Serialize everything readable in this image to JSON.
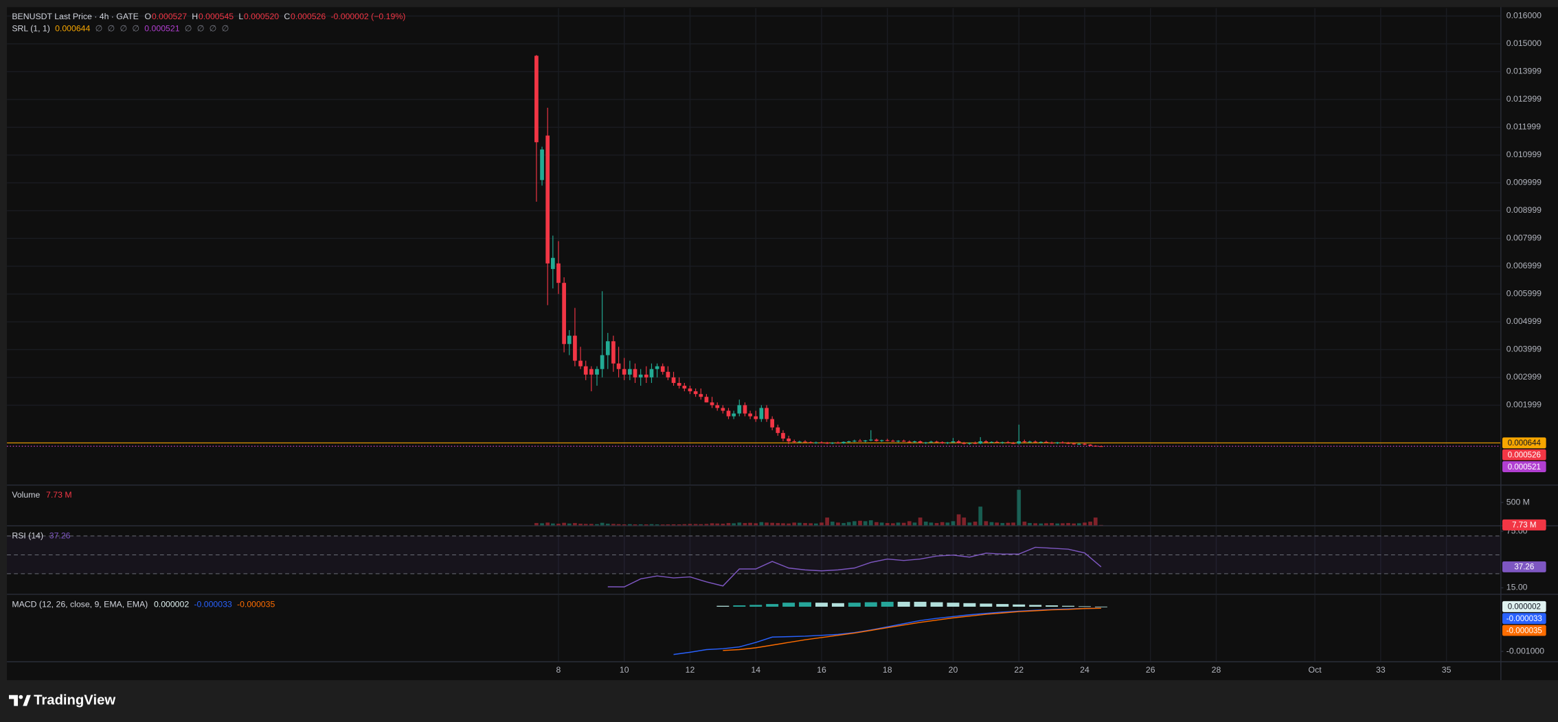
{
  "chart_data": [
    {
      "type": "candlestick",
      "title": "BENUSDT Last Price · 4h · GATE",
      "legend": {
        "labels": [
          "O",
          "H",
          "L",
          "C"
        ],
        "values": [
          "0.000527",
          "0.000545",
          "0.000520",
          "0.000526"
        ],
        "color": "#f23645",
        "change": "-0.000002 (−0.19%)"
      },
      "indicator": {
        "name": "SRL (1, 1)",
        "items": [
          "0.000644",
          "∅",
          "∅",
          "∅",
          "∅",
          "0.000521",
          "∅",
          "∅",
          "∅",
          "∅"
        ],
        "item_colors": [
          "#f7a600",
          "#787b86",
          "#787b86",
          "#787b86",
          "#787b86",
          "#b13fd1",
          "#787b86",
          "#787b86",
          "#787b86",
          "#787b86"
        ]
      },
      "up_color": "#22ab94",
      "down_color": "#f23645",
      "x": [
        7.33,
        7.5,
        7.67,
        7.83,
        8,
        8.17,
        8.33,
        8.5,
        8.67,
        8.83,
        9,
        9.17,
        9.33,
        9.5,
        9.67,
        9.83,
        10,
        10.17,
        10.33,
        10.5,
        10.67,
        10.83,
        11,
        11.17,
        11.33,
        11.5,
        11.67,
        11.83,
        12,
        12.17,
        12.33,
        12.5,
        12.67,
        12.83,
        13,
        13.17,
        13.33,
        13.5,
        13.67,
        13.83,
        14,
        14.17,
        14.33,
        14.5,
        14.67,
        14.83,
        15,
        15.17,
        15.33,
        15.5,
        15.67,
        15.83,
        16,
        16.17,
        16.33,
        16.5,
        16.67,
        16.83,
        17,
        17.17,
        17.33,
        17.5,
        17.67,
        17.83,
        18,
        18.17,
        18.33,
        18.5,
        18.67,
        18.83,
        19,
        19.17,
        19.33,
        19.5,
        19.67,
        19.83,
        20,
        20.17,
        20.33,
        20.5,
        20.67,
        20.83,
        21,
        21.17,
        21.33,
        21.5,
        21.67,
        21.83,
        22,
        22.17,
        22.33,
        22.5,
        22.67,
        22.83,
        23,
        23.17,
        23.33,
        23.5,
        23.67,
        23.83,
        24,
        24.17,
        24.33,
        24.5
      ],
      "open": [
        0.01457,
        0.0101,
        0.0117,
        0.0069,
        0.0071,
        0.0064,
        0.0042,
        0.0045,
        0.0036,
        0.0034,
        0.0033,
        0.0031,
        0.0033,
        0.0038,
        0.0043,
        0.0035,
        0.0033,
        0.0031,
        0.0033,
        0.003,
        0.0031,
        0.003,
        0.0033,
        0.0034,
        0.0032,
        0.003,
        0.0028,
        0.0027,
        0.0026,
        0.0025,
        0.0024,
        0.0023,
        0.0021,
        0.002,
        0.0019,
        0.0018,
        0.0016,
        0.0017,
        0.002,
        0.0017,
        0.0016,
        0.0015,
        0.0019,
        0.0015,
        0.0012,
        0.001,
        0.0008,
        0.0007,
        0.00068,
        0.00069,
        0.00067,
        0.00064,
        0.00066,
        0.00065,
        0.00062,
        0.00065,
        0.00063,
        0.00068,
        0.0007,
        0.00072,
        0.0007,
        0.00073,
        0.00076,
        0.00071,
        0.00074,
        0.00072,
        0.0007,
        0.00072,
        0.00069,
        0.00067,
        0.0007,
        0.00064,
        0.00066,
        0.00069,
        0.00067,
        0.00063,
        0.00066,
        0.0007,
        0.00064,
        0.00061,
        0.00064,
        0.00062,
        0.0007,
        0.00066,
        0.00068,
        0.00065,
        0.00067,
        0.00064,
        0.00062,
        0.0007,
        0.00067,
        0.00069,
        0.00066,
        0.00068,
        0.00065,
        0.00063,
        0.00066,
        0.00064,
        0.00062,
        0.0006,
        0.00061,
        0.00058,
        0.00054,
        0.000527
      ],
      "high": [
        0.0146,
        0.0113,
        0.0127,
        0.0081,
        0.0079,
        0.0066,
        0.0047,
        0.0055,
        0.0041,
        0.0036,
        0.0034,
        0.0034,
        0.0061,
        0.0046,
        0.0045,
        0.0041,
        0.0037,
        0.0036,
        0.0035,
        0.0033,
        0.0034,
        0.0035,
        0.0035,
        0.0035,
        0.0034,
        0.0032,
        0.003,
        0.0028,
        0.0027,
        0.0026,
        0.0026,
        0.0024,
        0.0023,
        0.0021,
        0.002,
        0.0019,
        0.0018,
        0.0022,
        0.0021,
        0.0018,
        0.0018,
        0.002,
        0.002,
        0.0016,
        0.0013,
        0.0011,
        0.0009,
        0.00076,
        0.00072,
        0.00074,
        0.0007,
        0.00069,
        0.0007,
        0.00068,
        0.00067,
        0.00069,
        0.0007,
        0.00072,
        0.00076,
        0.00078,
        0.00075,
        0.0011,
        0.0008,
        0.00076,
        0.00079,
        0.00076,
        0.00074,
        0.00076,
        0.00073,
        0.00072,
        0.00073,
        0.00068,
        0.00072,
        0.00072,
        0.0007,
        0.00068,
        0.00082,
        0.00074,
        0.00068,
        0.00066,
        0.00069,
        0.00085,
        0.00074,
        0.0007,
        0.00072,
        0.00069,
        0.00071,
        0.00068,
        0.0013,
        0.00076,
        0.00072,
        0.00073,
        0.0007,
        0.00072,
        0.00069,
        0.00068,
        0.0007,
        0.00068,
        0.00066,
        0.00064,
        0.00065,
        0.0006,
        0.00056,
        0.000545
      ],
      "low": [
        0.00932,
        0.0099,
        0.0056,
        0.0062,
        0.006,
        0.0039,
        0.0038,
        0.0034,
        0.0033,
        0.0029,
        0.0025,
        0.0027,
        0.003,
        0.0033,
        0.0032,
        0.003,
        0.0029,
        0.0029,
        0.0028,
        0.0027,
        0.0028,
        0.0028,
        0.003,
        0.0031,
        0.0029,
        0.0027,
        0.0026,
        0.0025,
        0.0024,
        0.0023,
        0.0022,
        0.0021,
        0.0019,
        0.0018,
        0.0017,
        0.0015,
        0.0015,
        0.0016,
        0.0016,
        0.0015,
        0.0014,
        0.0014,
        0.0014,
        0.0011,
        0.0009,
        0.0007,
        0.0006,
        0.00064,
        0.00065,
        0.00066,
        0.00062,
        0.00061,
        0.00063,
        0.0006,
        0.0006,
        0.00062,
        0.00061,
        0.00065,
        0.00067,
        0.00069,
        0.00066,
        0.0007,
        0.00069,
        0.00068,
        0.0007,
        0.00068,
        0.00066,
        0.00068,
        0.00065,
        0.00064,
        0.00062,
        0.0006,
        0.00064,
        0.00065,
        0.00061,
        0.0006,
        0.00064,
        0.00062,
        0.00059,
        0.00058,
        0.0006,
        0.0006,
        0.00064,
        0.00063,
        0.00064,
        0.00061,
        0.00062,
        0.0006,
        0.00059,
        0.00065,
        0.00064,
        0.00065,
        0.00062,
        0.00064,
        0.00061,
        0.0006,
        0.00062,
        0.0006,
        0.00058,
        0.00057,
        0.00056,
        0.00053,
        0.000515,
        0.00052
      ],
      "close": [
        0.01146,
        0.0112,
        0.0071,
        0.0073,
        0.0064,
        0.0042,
        0.0045,
        0.0036,
        0.0034,
        0.0031,
        0.0031,
        0.0033,
        0.0038,
        0.0043,
        0.0035,
        0.0033,
        0.0031,
        0.0033,
        0.003,
        0.0031,
        0.003,
        0.0033,
        0.0034,
        0.0032,
        0.003,
        0.0028,
        0.0027,
        0.0026,
        0.0025,
        0.0024,
        0.0023,
        0.0021,
        0.002,
        0.0019,
        0.0018,
        0.0016,
        0.0017,
        0.002,
        0.0017,
        0.0016,
        0.0015,
        0.0019,
        0.0015,
        0.0012,
        0.001,
        0.0008,
        0.0007,
        0.00068,
        0.00069,
        0.00067,
        0.00064,
        0.00066,
        0.00065,
        0.00062,
        0.00065,
        0.00063,
        0.00068,
        0.0007,
        0.00072,
        0.0007,
        0.00073,
        0.00076,
        0.00071,
        0.00074,
        0.00072,
        0.0007,
        0.00072,
        0.00069,
        0.00067,
        0.0007,
        0.00064,
        0.00066,
        0.00069,
        0.00067,
        0.00063,
        0.00066,
        0.0007,
        0.00064,
        0.00061,
        0.00064,
        0.00062,
        0.0007,
        0.00066,
        0.00068,
        0.00065,
        0.00067,
        0.00064,
        0.00062,
        0.0007,
        0.00067,
        0.00069,
        0.00066,
        0.00068,
        0.00065,
        0.00063,
        0.00066,
        0.00064,
        0.00062,
        0.0006,
        0.00061,
        0.00058,
        0.00054,
        0.000527,
        0.000526
      ],
      "price_lines": [
        {
          "value": 0.000644,
          "color": "#f7a600",
          "text_color": "#131722",
          "style": "solid"
        },
        {
          "value": 0.000526,
          "color": "#f23645",
          "text_color": "#ffffff",
          "style": "dotted"
        },
        {
          "value": 0.000521,
          "color": "#b13fd1",
          "text_color": "#ffffff",
          "style": "dotted"
        }
      ],
      "xlim": [
        -8.77,
        36.64
      ],
      "xticks": [
        8,
        10,
        12,
        14,
        16,
        18,
        20,
        22,
        24,
        26,
        28,
        {
          "value": 31,
          "label": "Oct"
        },
        33,
        35
      ],
      "ylim": [
        -0.000857,
        0.016286
      ],
      "yticks": [
        {
          "value": 0.016,
          "label": "0.016000"
        },
        {
          "value": 0.015,
          "label": "0.015000"
        },
        0.013999,
        0.012999,
        0.011999,
        0.010999,
        0.009999,
        0.008999,
        0.007999,
        0.006999,
        0.005999,
        0.004999,
        0.003999,
        0.002999,
        0.001999
      ],
      "grid": true
    },
    {
      "type": "volume",
      "title": "Volume",
      "last_label": "7.73 M",
      "label_color": "#f23645",
      "values": [
        50000000,
        45000000,
        60000000,
        40000000,
        35000000,
        55000000,
        40000000,
        50000000,
        35000000,
        30000000,
        30000000,
        25000000,
        55000000,
        35000000,
        30000000,
        25000000,
        20000000,
        25000000,
        20000000,
        22000000,
        20000000,
        25000000,
        20000000,
        18000000,
        20000000,
        22000000,
        20000000,
        25000000,
        30000000,
        28000000,
        25000000,
        30000000,
        45000000,
        40000000,
        35000000,
        50000000,
        45000000,
        60000000,
        50000000,
        55000000,
        45000000,
        70000000,
        60000000,
        55000000,
        50000000,
        45000000,
        40000000,
        60000000,
        55000000,
        50000000,
        45000000,
        40000000,
        60000000,
        170000000,
        80000000,
        60000000,
        50000000,
        70000000,
        90000000,
        100000000,
        90000000,
        110000000,
        70000000,
        60000000,
        50000000,
        45000000,
        60000000,
        55000000,
        90000000,
        60000000,
        170000000,
        80000000,
        60000000,
        50000000,
        70000000,
        60000000,
        90000000,
        240000000,
        170000000,
        60000000,
        80000000,
        410000000,
        90000000,
        70000000,
        60000000,
        50000000,
        55000000,
        60000000,
        780000000,
        80000000,
        50000000,
        45000000,
        40000000,
        45000000,
        50000000,
        40000000,
        45000000,
        50000000,
        40000000,
        45000000,
        60000000,
        80000000,
        170000000,
        7730000
      ],
      "ylim": [
        0,
        850000000
      ],
      "yticks": [
        {
          "value": 500000000,
          "label": "500 M"
        }
      ]
    },
    {
      "type": "rsi",
      "title": "RSI (14)",
      "color": "#7e57c2",
      "x": [
        9.5,
        10,
        10.5,
        11,
        11.5,
        12,
        12.5,
        13,
        13.5,
        14,
        14.5,
        15,
        15.5,
        16,
        16.5,
        17,
        17.5,
        18,
        18.5,
        19,
        19.5,
        20,
        20.5,
        21,
        21.5,
        22,
        22.5,
        23,
        23.5,
        24,
        24.5
      ],
      "values": [
        16.1,
        16,
        24.5,
        27.6,
        25.5,
        26.6,
        21.3,
        17,
        35,
        35,
        43,
        36,
        34,
        33,
        34,
        36,
        42,
        45.5,
        44,
        45.5,
        48.7,
        49.7,
        47.6,
        51.8,
        50.8,
        50.8,
        58,
        57,
        56,
        52,
        37.26
      ],
      "hlines": [
        70,
        50,
        30
      ],
      "ylim": [
        8.68,
        80.26
      ],
      "yticks": [
        {
          "value": 75,
          "label": "75.00"
        },
        {
          "value": 15,
          "label": "15.00"
        }
      ]
    },
    {
      "type": "macd",
      "title": "MACD (12, 26, close, 9, EMA, EMA)",
      "series": [
        {
          "style": "histogram",
          "colors": [
            "#26a69a",
            "#b2dfdb"
          ],
          "color": "#e0f2f1",
          "x": [
            13,
            13.5,
            14,
            14.5,
            15,
            15.5,
            16,
            16.5,
            17,
            17.5,
            18,
            18.5,
            19,
            19.5,
            20,
            20.5,
            21,
            21.5,
            22,
            22.5,
            23,
            23.5,
            24,
            24.5
          ],
          "values": [
            2e-05,
            3e-05,
            4e-05,
            6e-05,
            9e-05,
            0.0001,
            9e-05,
            8e-05,
            9e-05,
            0.0001,
            0.00011,
            0.00011,
            0.00011,
            0.0001,
            9e-05,
            8e-05,
            7e-05,
            6e-05,
            5e-05,
            4e-05,
            3e-05,
            2e-05,
            1e-05,
            2e-06
          ]
        },
        {
          "style": "line",
          "color": "#2962ff",
          "x": [
            11.5,
            12,
            12.5,
            13,
            13.5,
            14,
            14.5,
            15,
            15.5,
            16,
            16.5,
            17,
            17.5,
            18,
            18.5,
            19,
            19.5,
            20,
            20.5,
            21,
            21.5,
            22,
            22.5,
            23,
            23.5,
            24,
            24.5
          ],
          "values": [
            -0.00107,
            -0.00102,
            -0.00096,
            -0.00094,
            -0.0009,
            -0.0008,
            -0.00068,
            -0.00067,
            -0.00066,
            -0.00064,
            -0.00062,
            -0.00058,
            -0.00052,
            -0.00045,
            -0.00038,
            -0.00031,
            -0.00026,
            -0.00022,
            -0.00018,
            -0.00015,
            -0.00012,
            -0.0001,
            -8e-05,
            -6e-05,
            -5e-05,
            -4e-05,
            -3.3e-05
          ]
        },
        {
          "style": "line",
          "color": "#ff6d00",
          "x": [
            13,
            13.5,
            14,
            14.5,
            15,
            15.5,
            16,
            16.5,
            17,
            17.5,
            18,
            18.5,
            19,
            19.5,
            20,
            20.5,
            21,
            21.5,
            22,
            22.5,
            23,
            23.5,
            24,
            24.5
          ],
          "values": [
            -0.00098,
            -0.00096,
            -0.00092,
            -0.00086,
            -0.0008,
            -0.00074,
            -0.00069,
            -0.00064,
            -0.00059,
            -0.00053,
            -0.00047,
            -0.00041,
            -0.00035,
            -0.0003,
            -0.00025,
            -0.00021,
            -0.00017,
            -0.00014,
            -0.00011,
            -9e-05,
            -7e-05,
            -6e-05,
            -4e-05,
            -3.5e-05
          ]
        }
      ],
      "ylim": [
        -0.001222,
        0.000267
      ],
      "yticks": [
        {
          "value": -0.001,
          "label": "-0.001000"
        }
      ]
    }
  ],
  "footer": {
    "brand": "TradingView"
  }
}
